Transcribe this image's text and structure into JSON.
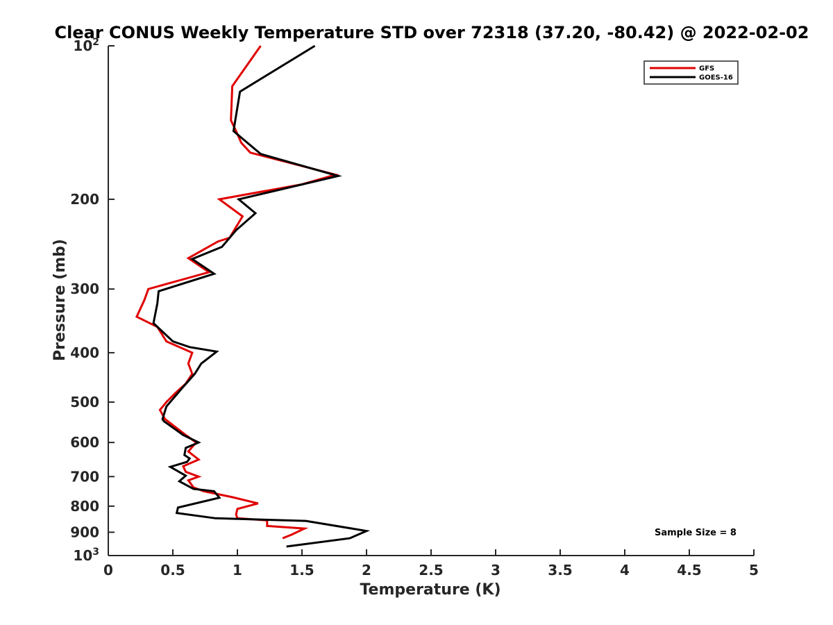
{
  "chart_data": {
    "type": "line",
    "title": "Clear CONUS Weekly Temperature STD over 72318 (37.20, -80.42) @ 2022-02-02",
    "xlabel": "Temperature (K)",
    "ylabel": "Pressure (mb)",
    "xlim": [
      0,
      5
    ],
    "ylim": [
      100,
      1000
    ],
    "y_scale": "log",
    "y_reversed": true,
    "grid": false,
    "legend_position": "top-right",
    "x_ticks": [
      0,
      0.5,
      1,
      1.5,
      2,
      2.5,
      3,
      3.5,
      4,
      4.5,
      5
    ],
    "x_tick_labels": [
      "0",
      "0.5",
      "1",
      "1.5",
      "2",
      "2.5",
      "3",
      "3.5",
      "4",
      "4.5",
      "5"
    ],
    "y_ticks": [
      100,
      200,
      300,
      400,
      500,
      600,
      700,
      800,
      900,
      1000
    ],
    "y_tick_labels": [
      {
        "base": "10",
        "sup": "2"
      },
      {
        "base": "200",
        "sup": ""
      },
      {
        "base": "300",
        "sup": ""
      },
      {
        "base": "400",
        "sup": ""
      },
      {
        "base": "500",
        "sup": ""
      },
      {
        "base": "600",
        "sup": ""
      },
      {
        "base": "700",
        "sup": ""
      },
      {
        "base": "800",
        "sup": ""
      },
      {
        "base": "900",
        "sup": ""
      },
      {
        "base": "10",
        "sup": "3"
      }
    ],
    "series": [
      {
        "name": "GFS",
        "color": "#e00000",
        "points": [
          [
            1.18,
            100
          ],
          [
            0.96,
            120
          ],
          [
            0.95,
            140
          ],
          [
            0.99,
            147
          ],
          [
            1.03,
            155
          ],
          [
            1.1,
            162
          ],
          [
            1.76,
            179
          ],
          [
            1.5,
            187
          ],
          [
            0.86,
            200
          ],
          [
            1.04,
            216
          ],
          [
            0.94,
            238
          ],
          [
            0.85,
            242
          ],
          [
            0.62,
            261
          ],
          [
            0.78,
            278
          ],
          [
            0.31,
            300
          ],
          [
            0.28,
            315
          ],
          [
            0.22,
            340
          ],
          [
            0.38,
            356
          ],
          [
            0.45,
            380
          ],
          [
            0.65,
            400
          ],
          [
            0.62,
            420
          ],
          [
            0.65,
            440
          ],
          [
            0.6,
            460
          ],
          [
            0.52,
            480
          ],
          [
            0.45,
            500
          ],
          [
            0.4,
            518
          ],
          [
            0.44,
            540
          ],
          [
            0.6,
            580
          ],
          [
            0.68,
            600
          ],
          [
            0.62,
            625
          ],
          [
            0.7,
            648
          ],
          [
            0.58,
            668
          ],
          [
            0.6,
            685
          ],
          [
            0.7,
            700
          ],
          [
            0.62,
            712
          ],
          [
            0.66,
            735
          ],
          [
            0.74,
            748
          ],
          [
            0.96,
            768
          ],
          [
            1.16,
            790
          ],
          [
            1.0,
            810
          ],
          [
            0.99,
            830
          ],
          [
            1.0,
            845
          ],
          [
            1.23,
            853
          ],
          [
            1.23,
            875
          ],
          [
            1.52,
            885
          ],
          [
            1.42,
            910
          ],
          [
            1.35,
            925
          ]
        ]
      },
      {
        "name": "GOES-16",
        "color": "#000000",
        "points": [
          [
            1.6,
            100
          ],
          [
            1.02,
            123
          ],
          [
            0.97,
            147
          ],
          [
            1.18,
            163
          ],
          [
            1.78,
            180
          ],
          [
            1.01,
            200
          ],
          [
            1.14,
            213
          ],
          [
            0.99,
            230
          ],
          [
            0.88,
            248
          ],
          [
            0.65,
            262
          ],
          [
            0.82,
            280
          ],
          [
            0.39,
            303
          ],
          [
            0.38,
            320
          ],
          [
            0.35,
            350
          ],
          [
            0.5,
            380
          ],
          [
            0.63,
            390
          ],
          [
            0.84,
            398
          ],
          [
            0.72,
            420
          ],
          [
            0.67,
            440
          ],
          [
            0.57,
            470
          ],
          [
            0.45,
            510
          ],
          [
            0.42,
            540
          ],
          [
            0.43,
            545
          ],
          [
            0.58,
            580
          ],
          [
            0.7,
            600
          ],
          [
            0.6,
            615
          ],
          [
            0.59,
            635
          ],
          [
            0.63,
            645
          ],
          [
            0.61,
            655
          ],
          [
            0.48,
            670
          ],
          [
            0.56,
            688
          ],
          [
            0.6,
            697
          ],
          [
            0.55,
            715
          ],
          [
            0.66,
            740
          ],
          [
            0.82,
            748
          ],
          [
            0.86,
            770
          ],
          [
            0.54,
            805
          ],
          [
            0.53,
            825
          ],
          [
            0.83,
            845
          ],
          [
            1.53,
            855
          ],
          [
            2.0,
            895
          ],
          [
            1.87,
            925
          ],
          [
            1.38,
            960
          ]
        ]
      }
    ],
    "annotations": [
      {
        "text": "Sample Size = 8"
      }
    ]
  }
}
